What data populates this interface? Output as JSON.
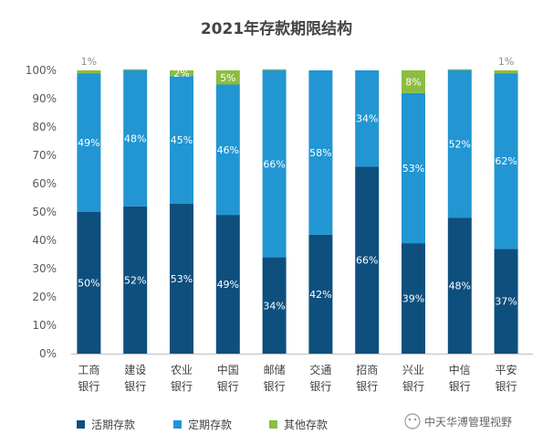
{
  "chart_data": {
    "type": "bar",
    "stacked": true,
    "title": "2021年存款期限结构",
    "categories": [
      [
        "工商",
        "银行"
      ],
      [
        "建设",
        "银行"
      ],
      [
        "农业",
        "银行"
      ],
      [
        "中国",
        "银行"
      ],
      [
        "邮储",
        "银行"
      ],
      [
        "交通",
        "银行"
      ],
      [
        "招商",
        "银行"
      ],
      [
        "兴业",
        "银行"
      ],
      [
        "中信",
        "银行"
      ],
      [
        "平安",
        "银行"
      ]
    ],
    "y_ticks": [
      "0%",
      "10%",
      "20%",
      "30%",
      "40%",
      "50%",
      "60%",
      "70%",
      "80%",
      "90%",
      "100%"
    ],
    "ylim": [
      0,
      100
    ],
    "series": [
      {
        "name": "活期存款",
        "color": "#0e4f7e",
        "values": [
          50,
          52,
          53,
          49,
          34,
          42,
          66,
          39,
          48,
          37
        ],
        "labels": [
          "50%",
          "52%",
          "53%",
          "49%",
          "34%",
          "42%",
          "66%",
          "39%",
          "48%",
          "37%"
        ]
      },
      {
        "name": "定期存款",
        "color": "#2196d2",
        "values": [
          49,
          48,
          45,
          46,
          66,
          58,
          34,
          53,
          52,
          62
        ],
        "labels": [
          "49%",
          "48%",
          "45%",
          "46%",
          "66%",
          "58%",
          "34%",
          "53%",
          "52%",
          "62%"
        ]
      },
      {
        "name": "其他存款",
        "color": "#8cbd3f",
        "values": [
          1,
          0.4,
          2,
          5,
          0.4,
          0,
          0,
          8,
          0.4,
          1
        ],
        "labels": [
          "1%",
          "",
          "2%",
          "5%",
          "",
          "",
          "",
          "8%",
          "",
          "1%"
        ]
      }
    ],
    "legend": "bottom"
  },
  "watermark": "中天华溥管理视野"
}
